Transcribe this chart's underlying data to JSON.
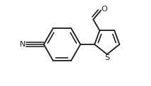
{
  "background_color": "#ffffff",
  "line_color": "#1a1a1a",
  "line_width": 1.3,
  "figsize": [
    2.14,
    1.22
  ],
  "dpi": 100,
  "label_N_text": "N",
  "label_N_fontsize": 8,
  "label_O_text": "O",
  "label_O_fontsize": 8,
  "label_S_text": "S",
  "label_S_fontsize": 8
}
